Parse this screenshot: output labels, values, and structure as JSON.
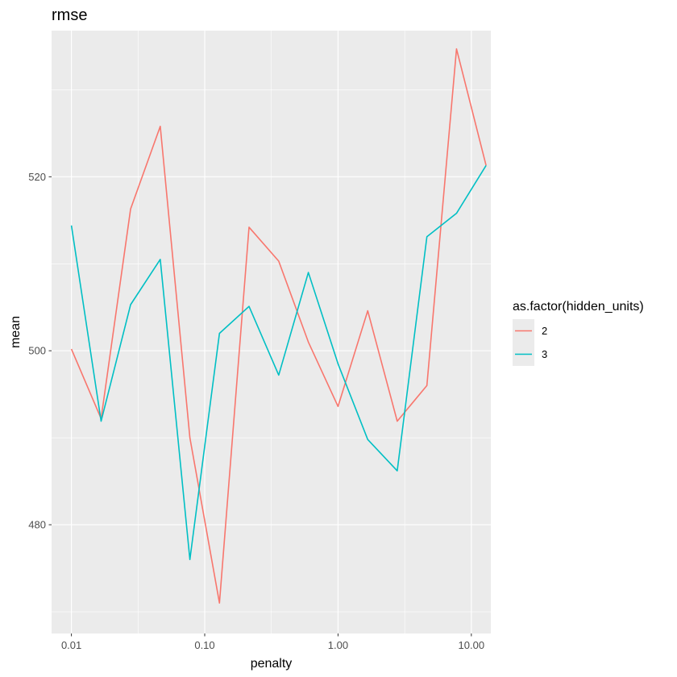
{
  "chart_data": {
    "type": "line",
    "title": "rmse",
    "xlabel": "penalty",
    "ylabel": "mean",
    "x_scale": "log10",
    "xlim": [
      0.0071,
      14.0
    ],
    "ylim": [
      467.5,
      536.8
    ],
    "x_ticks": [
      0.01,
      0.1,
      1,
      10
    ],
    "x_tick_labels": [
      "0.01",
      "0.10",
      "1.00",
      "10.00"
    ],
    "y_ticks": [
      480,
      500,
      520
    ],
    "y_tick_labels": [
      "480",
      "500",
      "520"
    ],
    "grid": true,
    "legend": {
      "title": "as.factor(hidden_units)",
      "position": "right"
    },
    "x": [
      0.01,
      0.0167,
      0.0278,
      0.0464,
      0.0774,
      0.129,
      0.215,
      0.359,
      0.599,
      1.0,
      1.67,
      2.78,
      4.64,
      7.74,
      12.9
    ],
    "series": [
      {
        "name": "2",
        "color": "#F8766D",
        "values": [
          500.2,
          492.2,
          516.3,
          525.8,
          490.0,
          471.0,
          514.2,
          510.3,
          501.0,
          493.6,
          504.6,
          491.9,
          496.0,
          534.7,
          521.3
        ]
      },
      {
        "name": "3",
        "color": "#00BFC4",
        "values": [
          514.4,
          491.9,
          505.3,
          510.5,
          476.0,
          502.0,
          505.1,
          497.2,
          509.0,
          498.5,
          489.8,
          486.2,
          513.1,
          515.8,
          521.3
        ]
      }
    ]
  }
}
